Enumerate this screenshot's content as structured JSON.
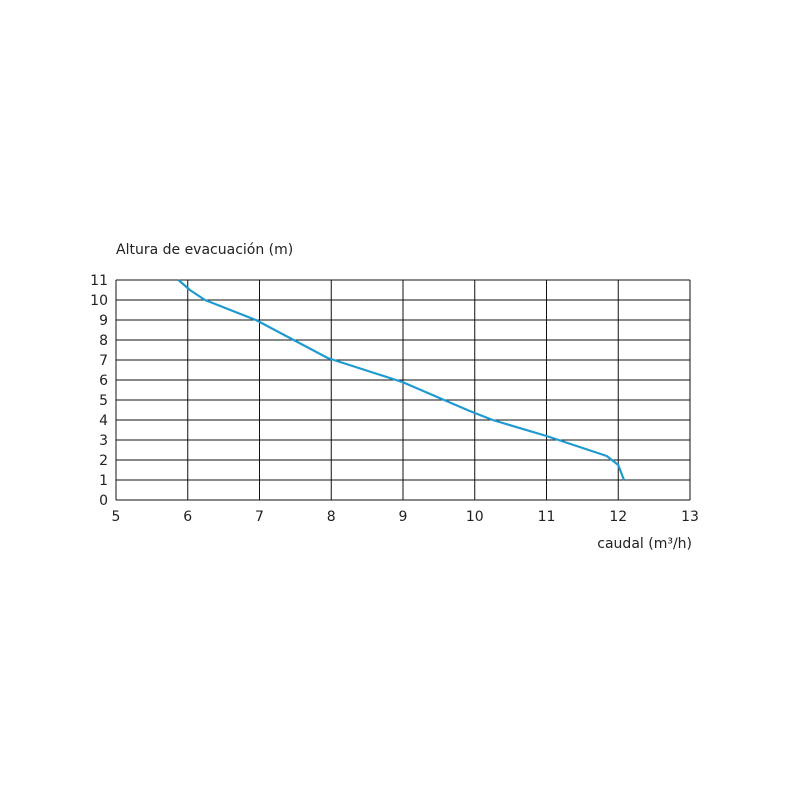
{
  "chart_data": {
    "type": "line",
    "y_label": "Altura de evacuación (m)",
    "x_label": "caudal (m³/h)",
    "x": [
      5.87,
      6.03,
      6.24,
      6.95,
      7.95,
      8.99,
      9.93,
      10.25,
      11.0,
      11.84,
      12.0,
      12.08
    ],
    "series": [
      {
        "color": "#1f9ad1",
        "values": [
          11,
          10.5,
          10,
          9,
          7.1,
          5.9,
          4.45,
          4.0,
          3.2,
          2.2,
          1.75,
          1.0
        ]
      }
    ],
    "xlim": [
      5,
      13
    ],
    "ylim": [
      0,
      11
    ],
    "xticks": [
      5,
      6,
      7,
      8,
      9,
      10,
      11,
      12,
      13
    ],
    "yticks": [
      0,
      1,
      2,
      3,
      4,
      5,
      6,
      7,
      8,
      9,
      10,
      11
    ],
    "grid": true
  }
}
